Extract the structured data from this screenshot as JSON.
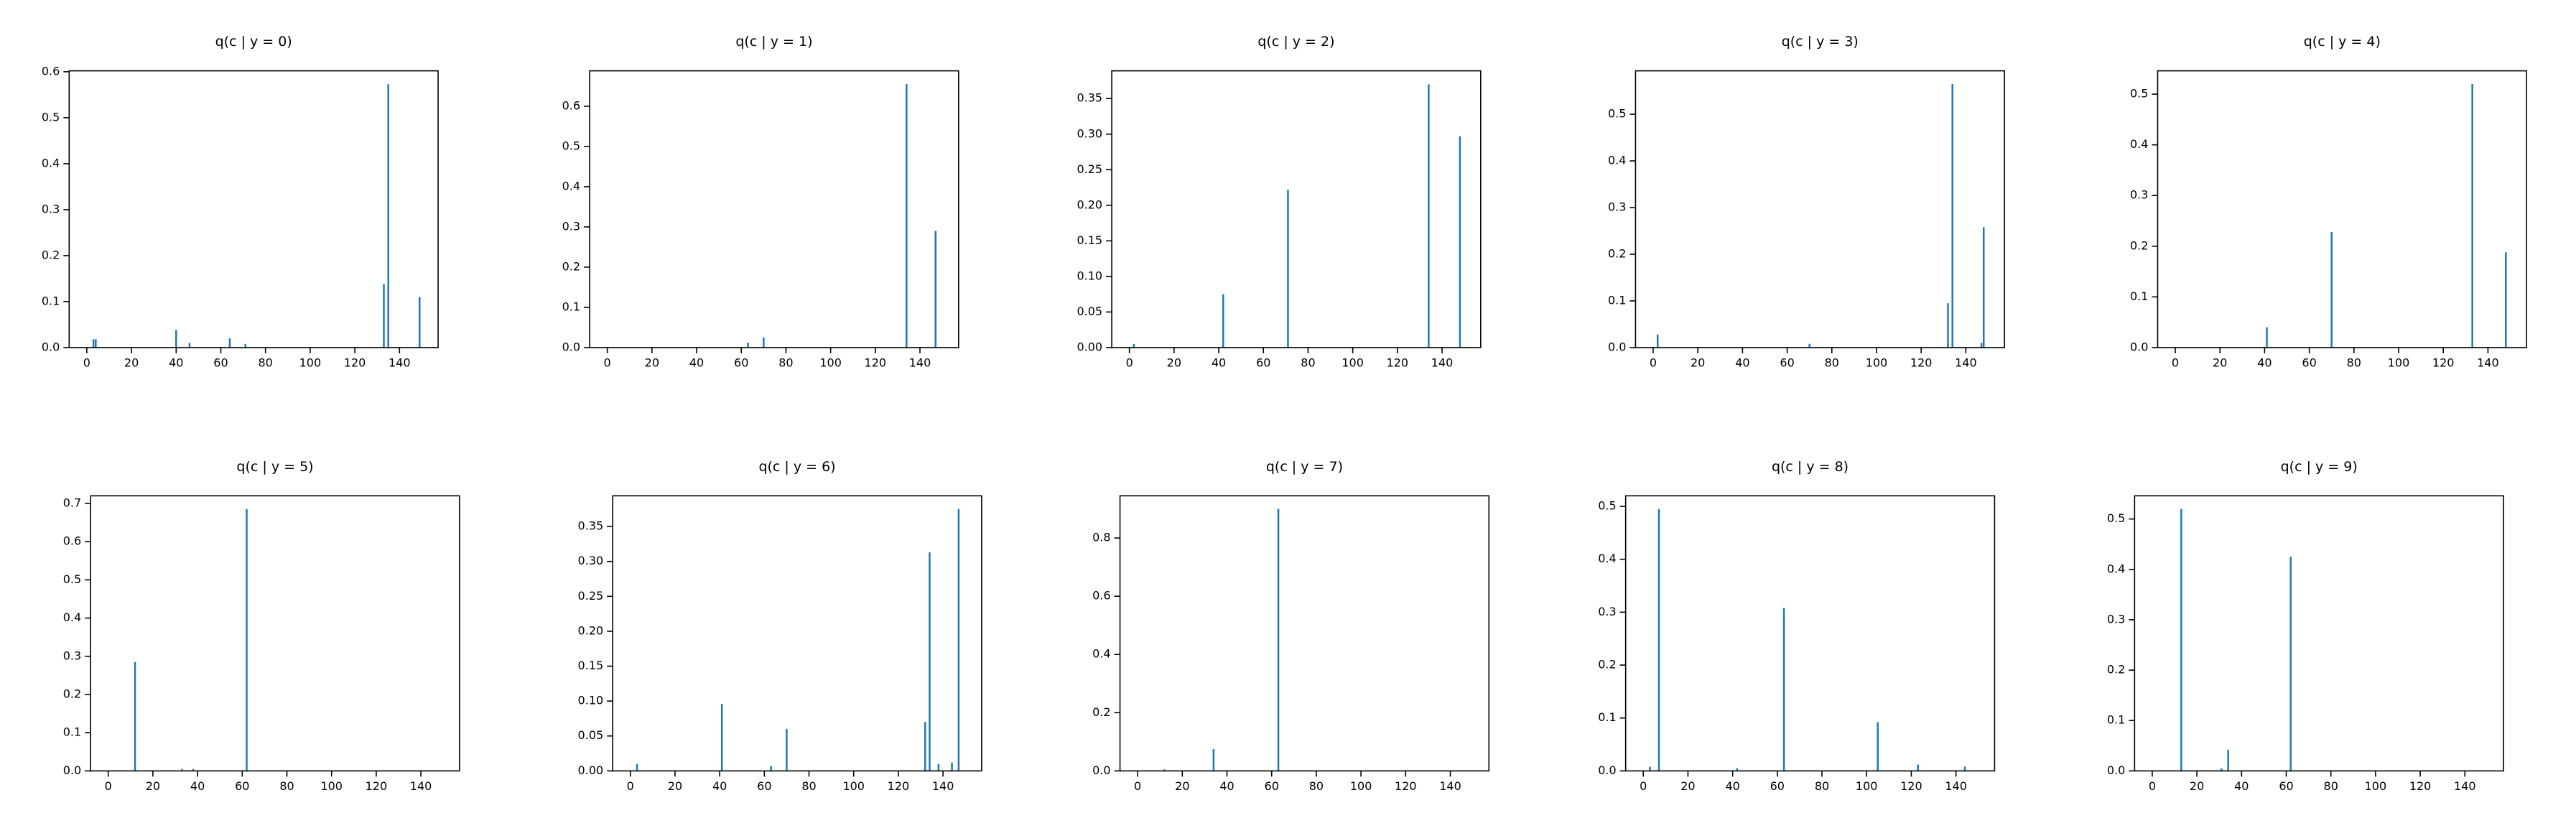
{
  "chart_data": [
    {
      "type": "bar",
      "title": "q(c | y = 0)",
      "color": "#1f77b4",
      "xlim": [
        -7.9,
        157.3
      ],
      "xticks": [
        0,
        20,
        40,
        60,
        80,
        100,
        120,
        140
      ],
      "ylim": [
        0,
        0.602
      ],
      "yticks": [
        {
          "value": 0,
          "label": "0.0"
        },
        {
          "value": 0.1,
          "label": "0.1"
        },
        {
          "value": 0.2,
          "label": "0.2"
        },
        {
          "value": 0.3,
          "label": "0.3"
        },
        {
          "value": 0.4,
          "label": "0.4"
        },
        {
          "value": 0.5,
          "label": "0.5"
        },
        {
          "value": 0.6,
          "label": "0.6"
        }
      ],
      "x": [
        3,
        4,
        40,
        46,
        64,
        71,
        133,
        135,
        149
      ],
      "values": [
        0.018,
        0.018,
        0.038,
        0.01,
        0.02,
        0.008,
        0.138,
        0.573,
        0.11
      ]
    },
    {
      "type": "bar",
      "title": "q(c | y = 1)",
      "color": "#1f77b4",
      "xlim": [
        -7.9,
        157.3
      ],
      "xticks": [
        0,
        20,
        40,
        60,
        80,
        100,
        120,
        140
      ],
      "ylim": [
        0,
        0.688
      ],
      "yticks": [
        {
          "value": 0,
          "label": "0.0"
        },
        {
          "value": 0.1,
          "label": "0.1"
        },
        {
          "value": 0.2,
          "label": "0.2"
        },
        {
          "value": 0.3,
          "label": "0.3"
        },
        {
          "value": 0.4,
          "label": "0.4"
        },
        {
          "value": 0.5,
          "label": "0.5"
        },
        {
          "value": 0.6,
          "label": "0.6"
        }
      ],
      "x": [
        63,
        70,
        134,
        147
      ],
      "values": [
        0.012,
        0.025,
        0.655,
        0.29
      ]
    },
    {
      "type": "bar",
      "title": "q(c | y = 2)",
      "color": "#1f77b4",
      "xlim": [
        -7.9,
        157.3
      ],
      "xticks": [
        0,
        20,
        40,
        60,
        80,
        100,
        120,
        140
      ],
      "ylim": [
        0,
        0.389
      ],
      "yticks": [
        {
          "value": 0,
          "label": "0.00"
        },
        {
          "value": 0.05,
          "label": "0.05"
        },
        {
          "value": 0.1,
          "label": "0.10"
        },
        {
          "value": 0.15,
          "label": "0.15"
        },
        {
          "value": 0.2,
          "label": "0.20"
        },
        {
          "value": 0.25,
          "label": "0.25"
        },
        {
          "value": 0.3,
          "label": "0.30"
        },
        {
          "value": 0.35,
          "label": "0.35"
        }
      ],
      "x": [
        2,
        42,
        71,
        134,
        148
      ],
      "values": [
        0.005,
        0.075,
        0.222,
        0.37,
        0.297
      ]
    },
    {
      "type": "bar",
      "title": "q(c | y = 3)",
      "color": "#1f77b4",
      "xlim": [
        -7.9,
        157.3
      ],
      "xticks": [
        0,
        20,
        40,
        60,
        80,
        100,
        120,
        140
      ],
      "ylim": [
        0,
        0.593
      ],
      "yticks": [
        {
          "value": 0,
          "label": "0.0"
        },
        {
          "value": 0.1,
          "label": "0.1"
        },
        {
          "value": 0.2,
          "label": "0.2"
        },
        {
          "value": 0.3,
          "label": "0.3"
        },
        {
          "value": 0.4,
          "label": "0.4"
        },
        {
          "value": 0.5,
          "label": "0.5"
        }
      ],
      "x": [
        2,
        70,
        132,
        134,
        147,
        148
      ],
      "values": [
        0.028,
        0.008,
        0.095,
        0.565,
        0.01,
        0.258
      ]
    },
    {
      "type": "bar",
      "title": "q(c | y = 4)",
      "color": "#1f77b4",
      "xlim": [
        -7.9,
        157.3
      ],
      "xticks": [
        0,
        20,
        40,
        60,
        80,
        100,
        120,
        140
      ],
      "ylim": [
        0,
        0.546
      ],
      "yticks": [
        {
          "value": 0,
          "label": "0.0"
        },
        {
          "value": 0.1,
          "label": "0.1"
        },
        {
          "value": 0.2,
          "label": "0.2"
        },
        {
          "value": 0.3,
          "label": "0.3"
        },
        {
          "value": 0.4,
          "label": "0.4"
        },
        {
          "value": 0.5,
          "label": "0.5"
        }
      ],
      "x": [
        41,
        70,
        133,
        148
      ],
      "values": [
        0.04,
        0.228,
        0.52,
        0.188
      ]
    },
    {
      "type": "bar",
      "title": "q(c | y = 5)",
      "color": "#1f77b4",
      "xlim": [
        -7.9,
        157.3
      ],
      "xticks": [
        0,
        20,
        40,
        60,
        80,
        100,
        120,
        140
      ],
      "ylim": [
        0,
        0.72
      ],
      "yticks": [
        {
          "value": 0,
          "label": "0.0"
        },
        {
          "value": 0.1,
          "label": "0.1"
        },
        {
          "value": 0.2,
          "label": "0.2"
        },
        {
          "value": 0.3,
          "label": "0.3"
        },
        {
          "value": 0.4,
          "label": "0.4"
        },
        {
          "value": 0.5,
          "label": "0.5"
        },
        {
          "value": 0.6,
          "label": "0.6"
        },
        {
          "value": 0.7,
          "label": "0.7"
        }
      ],
      "x": [
        12,
        33,
        38,
        62
      ],
      "values": [
        0.285,
        0.005,
        0.005,
        0.685
      ]
    },
    {
      "type": "bar",
      "title": "q(c | y = 6)",
      "color": "#1f77b4",
      "xlim": [
        -7.9,
        157.3
      ],
      "xticks": [
        0,
        20,
        40,
        60,
        80,
        100,
        120,
        140
      ],
      "ylim": [
        0,
        0.394
      ],
      "yticks": [
        {
          "value": 0,
          "label": "0.00"
        },
        {
          "value": 0.05,
          "label": "0.05"
        },
        {
          "value": 0.1,
          "label": "0.10"
        },
        {
          "value": 0.15,
          "label": "0.15"
        },
        {
          "value": 0.2,
          "label": "0.20"
        },
        {
          "value": 0.25,
          "label": "0.25"
        },
        {
          "value": 0.3,
          "label": "0.30"
        },
        {
          "value": 0.35,
          "label": "0.35"
        }
      ],
      "x": [
        3,
        41,
        63,
        70,
        132,
        134,
        138,
        144,
        147
      ],
      "values": [
        0.01,
        0.096,
        0.007,
        0.06,
        0.07,
        0.313,
        0.01,
        0.012,
        0.375
      ]
    },
    {
      "type": "bar",
      "title": "q(c | y = 7)",
      "color": "#1f77b4",
      "xlim": [
        -7.9,
        157.3
      ],
      "xticks": [
        0,
        20,
        40,
        60,
        80,
        100,
        120,
        140
      ],
      "ylim": [
        0,
        0.945
      ],
      "yticks": [
        {
          "value": 0,
          "label": "0.0"
        },
        {
          "value": 0.2,
          "label": "0.2"
        },
        {
          "value": 0.4,
          "label": "0.4"
        },
        {
          "value": 0.6,
          "label": "0.6"
        },
        {
          "value": 0.8,
          "label": "0.8"
        }
      ],
      "x": [
        12,
        34,
        63
      ],
      "values": [
        0.005,
        0.075,
        0.9
      ]
    },
    {
      "type": "bar",
      "title": "q(c | y = 8)",
      "color": "#1f77b4",
      "xlim": [
        -7.9,
        157.3
      ],
      "xticks": [
        0,
        20,
        40,
        60,
        80,
        100,
        120,
        140
      ],
      "ylim": [
        0,
        0.52
      ],
      "yticks": [
        {
          "value": 0,
          "label": "0.0"
        },
        {
          "value": 0.1,
          "label": "0.1"
        },
        {
          "value": 0.2,
          "label": "0.2"
        },
        {
          "value": 0.3,
          "label": "0.3"
        },
        {
          "value": 0.4,
          "label": "0.4"
        },
        {
          "value": 0.5,
          "label": "0.5"
        }
      ],
      "x": [
        3,
        7,
        42,
        63,
        105,
        123,
        144
      ],
      "values": [
        0.008,
        0.495,
        0.005,
        0.308,
        0.092,
        0.012,
        0.008
      ]
    },
    {
      "type": "bar",
      "title": "q(c | y = 9)",
      "color": "#1f77b4",
      "xlim": [
        -7.9,
        157.3
      ],
      "xticks": [
        0,
        20,
        40,
        60,
        80,
        100,
        120,
        140
      ],
      "ylim": [
        0,
        0.546
      ],
      "yticks": [
        {
          "value": 0,
          "label": "0.0"
        },
        {
          "value": 0.1,
          "label": "0.1"
        },
        {
          "value": 0.2,
          "label": "0.2"
        },
        {
          "value": 0.3,
          "label": "0.3"
        },
        {
          "value": 0.4,
          "label": "0.4"
        },
        {
          "value": 0.5,
          "label": "0.5"
        }
      ],
      "x": [
        13,
        31,
        34,
        62
      ],
      "values": [
        0.52,
        0.005,
        0.042,
        0.425
      ]
    }
  ]
}
